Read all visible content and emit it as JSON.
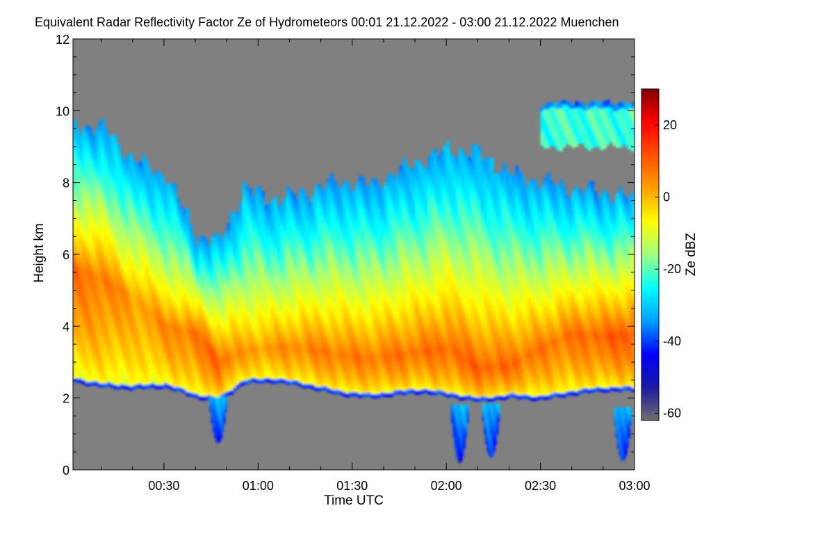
{
  "chart_data": {
    "type": "heatmap",
    "title": "Equivalent Radar Reflectivity Factor Ze of Hydrometeors   00:01 21.12.2022 - 03:00 21.12.2022 Muenchen",
    "xlabel": "Time UTC",
    "ylabel": "Height km",
    "x_range_minutes": [
      1,
      180
    ],
    "x_ticks": [
      {
        "minute": 30,
        "label": "00:30"
      },
      {
        "minute": 60,
        "label": "01:00"
      },
      {
        "minute": 90,
        "label": "01:30"
      },
      {
        "minute": 120,
        "label": "02:00"
      },
      {
        "minute": 150,
        "label": "02:30"
      },
      {
        "minute": 180,
        "label": "03:00"
      }
    ],
    "ylim": [
      0,
      12
    ],
    "y_ticks": [
      0,
      2,
      4,
      6,
      8,
      10,
      12
    ],
    "colorbar": {
      "label": "Ze dBZ",
      "range": [
        -62,
        30
      ],
      "ticks": [
        20,
        0,
        -20,
        -40,
        -60
      ],
      "colors": [
        "#6e6e6e",
        "#1a1aa0",
        "#0000ff",
        "#00a0ff",
        "#00ffff",
        "#a0ff80",
        "#ffff00",
        "#ffa000",
        "#ff5000",
        "#ff0000",
        "#800000"
      ]
    },
    "no_signal_color": "#808080",
    "cloud_profile": [
      {
        "minute": 1,
        "cloud_base_km": 2.45,
        "cloud_top_km": 9.6,
        "max_dbz": 8,
        "max_height_km": 5.6
      },
      {
        "minute": 10,
        "cloud_base_km": 2.3,
        "cloud_top_km": 9.5,
        "max_dbz": 7,
        "max_height_km": 5.3
      },
      {
        "minute": 20,
        "cloud_base_km": 2.25,
        "cloud_top_km": 8.6,
        "max_dbz": 3,
        "max_height_km": 4.8
      },
      {
        "minute": 30,
        "cloud_base_km": 2.3,
        "cloud_top_km": 8.2,
        "max_dbz": 5,
        "max_height_km": 4.0
      },
      {
        "minute": 40,
        "cloud_base_km": 2.0,
        "cloud_top_km": 6.5,
        "max_dbz": 8,
        "max_height_km": 3.8
      },
      {
        "minute": 47,
        "cloud_base_km": 1.9,
        "cloud_top_km": 6.3,
        "max_dbz": 10,
        "max_height_km": 3.0
      },
      {
        "minute": 55,
        "cloud_base_km": 2.4,
        "cloud_top_km": 7.8,
        "max_dbz": 3,
        "max_height_km": 3.3
      },
      {
        "minute": 65,
        "cloud_base_km": 2.45,
        "cloud_top_km": 7.5,
        "max_dbz": 4,
        "max_height_km": 3.4
      },
      {
        "minute": 75,
        "cloud_base_km": 2.3,
        "cloud_top_km": 7.7,
        "max_dbz": 6,
        "max_height_km": 3.4
      },
      {
        "minute": 85,
        "cloud_base_km": 2.1,
        "cloud_top_km": 8.0,
        "max_dbz": 7,
        "max_height_km": 3.2
      },
      {
        "minute": 95,
        "cloud_base_km": 2.0,
        "cloud_top_km": 7.9,
        "max_dbz": 7,
        "max_height_km": 3.1
      },
      {
        "minute": 105,
        "cloud_base_km": 2.1,
        "cloud_top_km": 8.3,
        "max_dbz": 8,
        "max_height_km": 3.2
      },
      {
        "minute": 112,
        "cloud_base_km": 2.15,
        "cloud_top_km": 8.6,
        "max_dbz": 8,
        "max_height_km": 3.3
      },
      {
        "minute": 120,
        "cloud_base_km": 2.05,
        "cloud_top_km": 8.9,
        "max_dbz": 9,
        "max_height_km": 3.4
      },
      {
        "minute": 130,
        "cloud_base_km": 1.9,
        "cloud_top_km": 8.8,
        "max_dbz": 10,
        "max_height_km": 2.8
      },
      {
        "minute": 140,
        "cloud_base_km": 2.0,
        "cloud_top_km": 8.2,
        "max_dbz": 9,
        "max_height_km": 2.9
      },
      {
        "minute": 150,
        "cloud_base_km": 1.95,
        "cloud_top_km": 8.0,
        "max_dbz": 7,
        "max_height_km": 3.4
      },
      {
        "minute": 160,
        "cloud_base_km": 2.1,
        "cloud_top_km": 7.8,
        "max_dbz": 8,
        "max_height_km": 3.8
      },
      {
        "minute": 170,
        "cloud_base_km": 2.2,
        "cloud_top_km": 7.7,
        "max_dbz": 10,
        "max_height_km": 3.7
      },
      {
        "minute": 180,
        "cloud_base_km": 2.2,
        "cloud_top_km": 7.5,
        "max_dbz": 12,
        "max_height_km": 3.8
      }
    ],
    "upper_cloud_layer": {
      "minute_range": [
        150,
        180
      ],
      "bottom_km": 9.0,
      "top_km": 10.2,
      "dbz": -22
    },
    "precipitation_shafts": [
      {
        "minute_center": 47,
        "bottom_km": 0.75,
        "top_km": 2.0
      },
      {
        "minute_center": 124,
        "bottom_km": 0.2,
        "top_km": 1.8
      },
      {
        "minute_center": 134,
        "bottom_km": 0.35,
        "top_km": 1.8
      },
      {
        "minute_center": 176,
        "bottom_km": 0.25,
        "top_km": 1.7
      }
    ]
  }
}
